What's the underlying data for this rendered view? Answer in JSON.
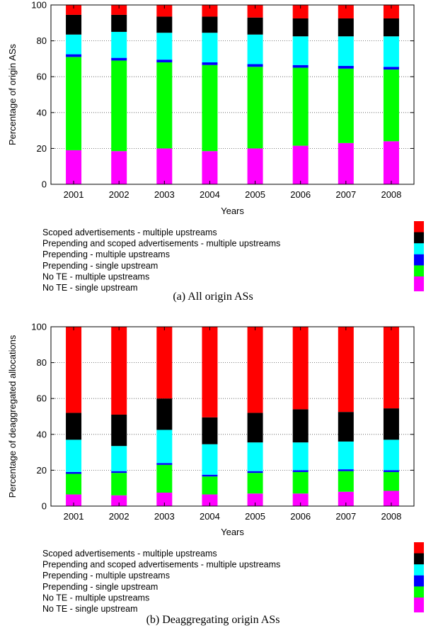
{
  "colors": {
    "Scoped advertisements - multiple upstreams": "#ff0000",
    "Prepending and scoped advertisements - multiple upstreams": "#000000",
    "Prepending - multiple upstreams": "#00ffff",
    "Prepending - single upstream": "#0000ff",
    "No TE - multiple upstreams": "#00ff00",
    "No TE - single upstream": "#ff00ff"
  },
  "chart_data": [
    {
      "type": "bar",
      "stacked": true,
      "caption": "(a) All origin ASs",
      "xlabel": "Years",
      "ylabel": "Percentage of origin ASs",
      "ylim": [
        0,
        100
      ],
      "yticks": [
        0,
        20,
        40,
        60,
        80,
        100
      ],
      "grid": true,
      "categories": [
        "2001",
        "2002",
        "2003",
        "2004",
        "2005",
        "2006",
        "2007",
        "2008"
      ],
      "series": [
        {
          "name": "No TE - single upstream",
          "values": [
            19,
            18.5,
            20,
            18.5,
            20,
            21.5,
            23,
            24
          ]
        },
        {
          "name": "No TE - multiple upstreams",
          "values": [
            52,
            50.5,
            48,
            48,
            45.5,
            43.5,
            41.5,
            40
          ]
        },
        {
          "name": "Prepending - single upstream",
          "values": [
            1.5,
            1.5,
            1.5,
            1.5,
            1.5,
            1.5,
            1.5,
            1.5
          ]
        },
        {
          "name": "Prepending - multiple upstreams",
          "values": [
            11,
            14.5,
            15,
            16.5,
            16.5,
            16,
            16.5,
            17
          ]
        },
        {
          "name": "Prepending and scoped advertisements - multiple upstreams",
          "values": [
            11,
            9.5,
            9,
            9,
            9.5,
            10,
            10,
            10
          ]
        },
        {
          "name": "Scoped advertisements - multiple upstreams",
          "values": [
            5.5,
            5.5,
            6.5,
            6.5,
            7,
            7.5,
            7.5,
            7.5
          ]
        }
      ]
    },
    {
      "type": "bar",
      "stacked": true,
      "caption": "(b) Deaggregating origin ASs",
      "xlabel": "Years",
      "ylabel": "Percentage of deaggregated allocations",
      "ylim": [
        0,
        100
      ],
      "yticks": [
        0,
        20,
        40,
        60,
        80,
        100
      ],
      "grid": true,
      "categories": [
        "2001",
        "2002",
        "2003",
        "2004",
        "2005",
        "2006",
        "2007",
        "2008"
      ],
      "series": [
        {
          "name": "No TE - single upstream",
          "values": [
            6.5,
            6,
            7.5,
            6.5,
            7,
            7,
            8,
            8.5
          ]
        },
        {
          "name": "No TE - multiple upstreams",
          "values": [
            11.5,
            12.5,
            15.5,
            10,
            11.5,
            12,
            11.5,
            10.5
          ]
        },
        {
          "name": "Prepending - single upstream",
          "values": [
            1,
            1,
            1,
            1,
            1,
            1,
            1,
            1
          ]
        },
        {
          "name": "Prepending - multiple upstreams",
          "values": [
            18,
            14,
            18.5,
            17,
            16,
            15.5,
            15.5,
            17
          ]
        },
        {
          "name": "Prepending and scoped advertisements - multiple upstreams",
          "values": [
            15,
            17.5,
            17.5,
            15,
            16.5,
            18.5,
            16.5,
            17.5
          ]
        },
        {
          "name": "Scoped advertisements - multiple upstreams",
          "values": [
            48,
            49,
            40,
            50.5,
            48,
            46,
            47.5,
            45.5
          ]
        }
      ]
    }
  ],
  "legend_order": [
    "Scoped advertisements - multiple upstreams",
    "Prepending and scoped advertisements - multiple upstreams",
    "Prepending - multiple upstreams",
    "Prepending - single upstream",
    "No TE - multiple upstreams",
    "No TE - single upstream"
  ]
}
